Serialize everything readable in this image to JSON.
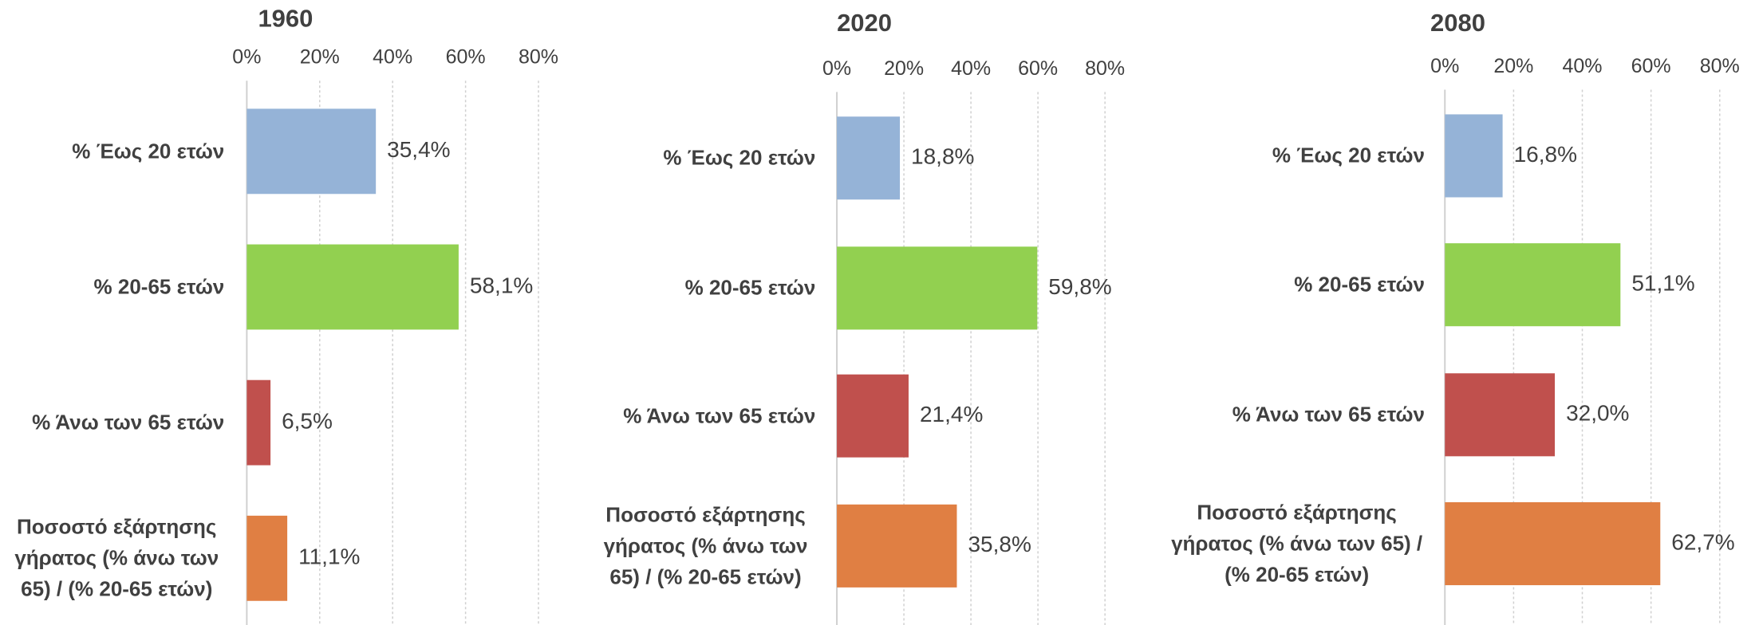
{
  "chart_data": [
    {
      "type": "bar",
      "title": "1960",
      "categories": [
        "% Έως 20 ετών",
        "% 20-65 ετών",
        "% Άνω των 65 ετών",
        "Ποσοστό εξάρτησης γήρατος (% άνω των 65) / (% 20-65 ετών)"
      ],
      "values": [
        35.4,
        58.1,
        6.5,
        11.1
      ],
      "value_labels": [
        "35,4%",
        "58,1%",
        "6,5%",
        "11,1%"
      ],
      "colors": [
        "#95b3d7",
        "#92d050",
        "#c0504d",
        "#e07f43"
      ],
      "xlim": [
        0,
        80
      ],
      "xticks": [
        {
          "value": 0,
          "label": "0%"
        },
        {
          "value": 20,
          "label": "20%"
        },
        {
          "value": 40,
          "label": "40%"
        },
        {
          "value": 60,
          "label": "60%"
        },
        {
          "value": 80,
          "label": "80%"
        }
      ],
      "grid": true
    },
    {
      "type": "bar",
      "title": "2020",
      "categories": [
        "% Έως 20 ετών",
        "% 20-65 ετών",
        "% Άνω των 65 ετών",
        "Ποσοστό εξάρτησης γήρατος (% άνω των 65) / (% 20-65 ετών)"
      ],
      "values": [
        18.8,
        59.8,
        21.4,
        35.8
      ],
      "value_labels": [
        "18,8%",
        "59,8%",
        "21,4%",
        "35,8%"
      ],
      "colors": [
        "#95b3d7",
        "#92d050",
        "#c0504d",
        "#e07f43"
      ],
      "xlim": [
        0,
        80
      ],
      "xticks": [
        {
          "value": 0,
          "label": "0%"
        },
        {
          "value": 20,
          "label": "20%"
        },
        {
          "value": 40,
          "label": "40%"
        },
        {
          "value": 60,
          "label": "60%"
        },
        {
          "value": 80,
          "label": "80%"
        }
      ],
      "grid": true
    },
    {
      "type": "bar",
      "title": "2080",
      "categories": [
        "% Έως 20 ετών",
        "% 20-65 ετών",
        "% Άνω των 65 ετών",
        "Ποσοστό εξάρτησης γήρατος (% άνω των 65) / (% 20-65 ετών)"
      ],
      "values": [
        16.8,
        51.1,
        32.0,
        62.7
      ],
      "value_labels": [
        "16,8%",
        "51,1%",
        "32,0%",
        "62,7%"
      ],
      "colors": [
        "#95b3d7",
        "#92d050",
        "#c0504d",
        "#e07f43"
      ],
      "xlim": [
        0,
        80
      ],
      "xticks": [
        {
          "value": 0,
          "label": "0%"
        },
        {
          "value": 20,
          "label": "20%"
        },
        {
          "value": 40,
          "label": "40%"
        },
        {
          "value": 60,
          "label": "60%"
        },
        {
          "value": 80,
          "label": "80%"
        }
      ],
      "grid": true
    }
  ]
}
